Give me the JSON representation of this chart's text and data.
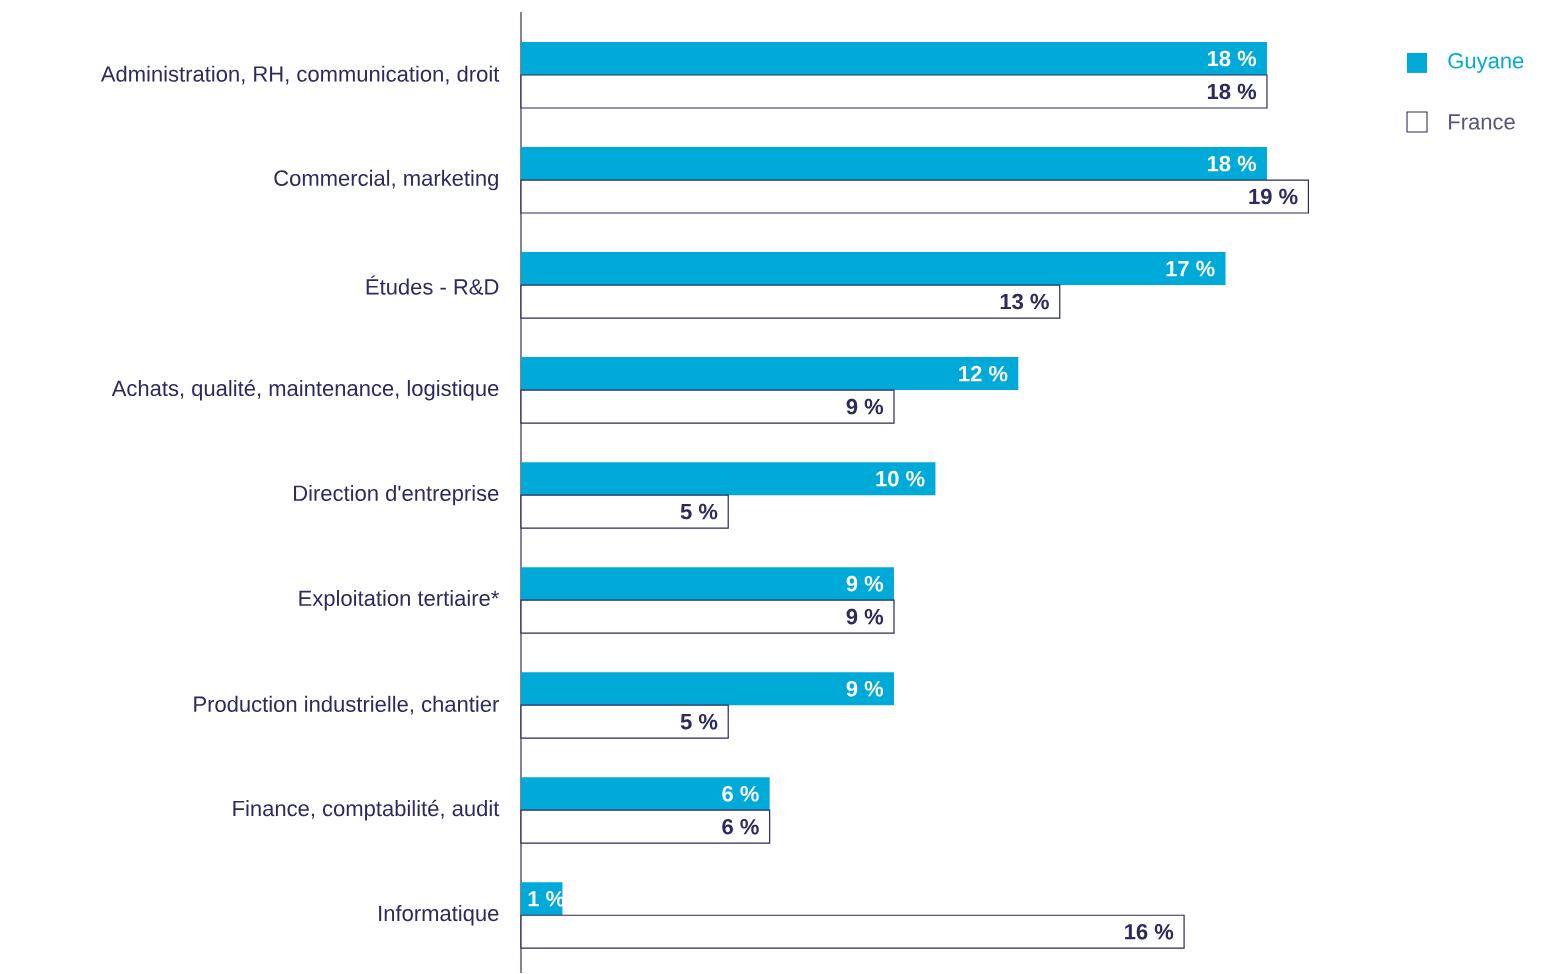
{
  "chart_data": {
    "type": "bar",
    "orientation": "horizontal",
    "legend": "top right",
    "grid": false,
    "categories": [
      "Administration, RH, communication, droit",
      "Commercial, marketing",
      "Études - R&D",
      "Achats, qualité, maintenance, logistique",
      "Direction d'entreprise",
      "Exploitation tertiaire*",
      "Production industrielle, chantier",
      "Finance, comptabilité, audit",
      "Informatique"
    ],
    "series": [
      {
        "name": "Guyane",
        "color": "#00aad8",
        "values": [
          18,
          18,
          17,
          12,
          10,
          9,
          9,
          6,
          1
        ],
        "value_labels": [
          "18 %",
          "18 %",
          "17 %",
          "12 %",
          "10 %",
          "9 %",
          "9 %",
          "6 %",
          "1 %"
        ]
      },
      {
        "name": "France",
        "color": "#ffffff",
        "values": [
          18,
          19,
          13,
          9,
          5,
          9,
          5,
          6,
          16
        ],
        "value_labels": [
          "18 %",
          "19 %",
          "13 %",
          "9 %",
          "5 %",
          "9 %",
          "5 %",
          "6 %",
          "16 %"
        ]
      }
    ]
  }
}
